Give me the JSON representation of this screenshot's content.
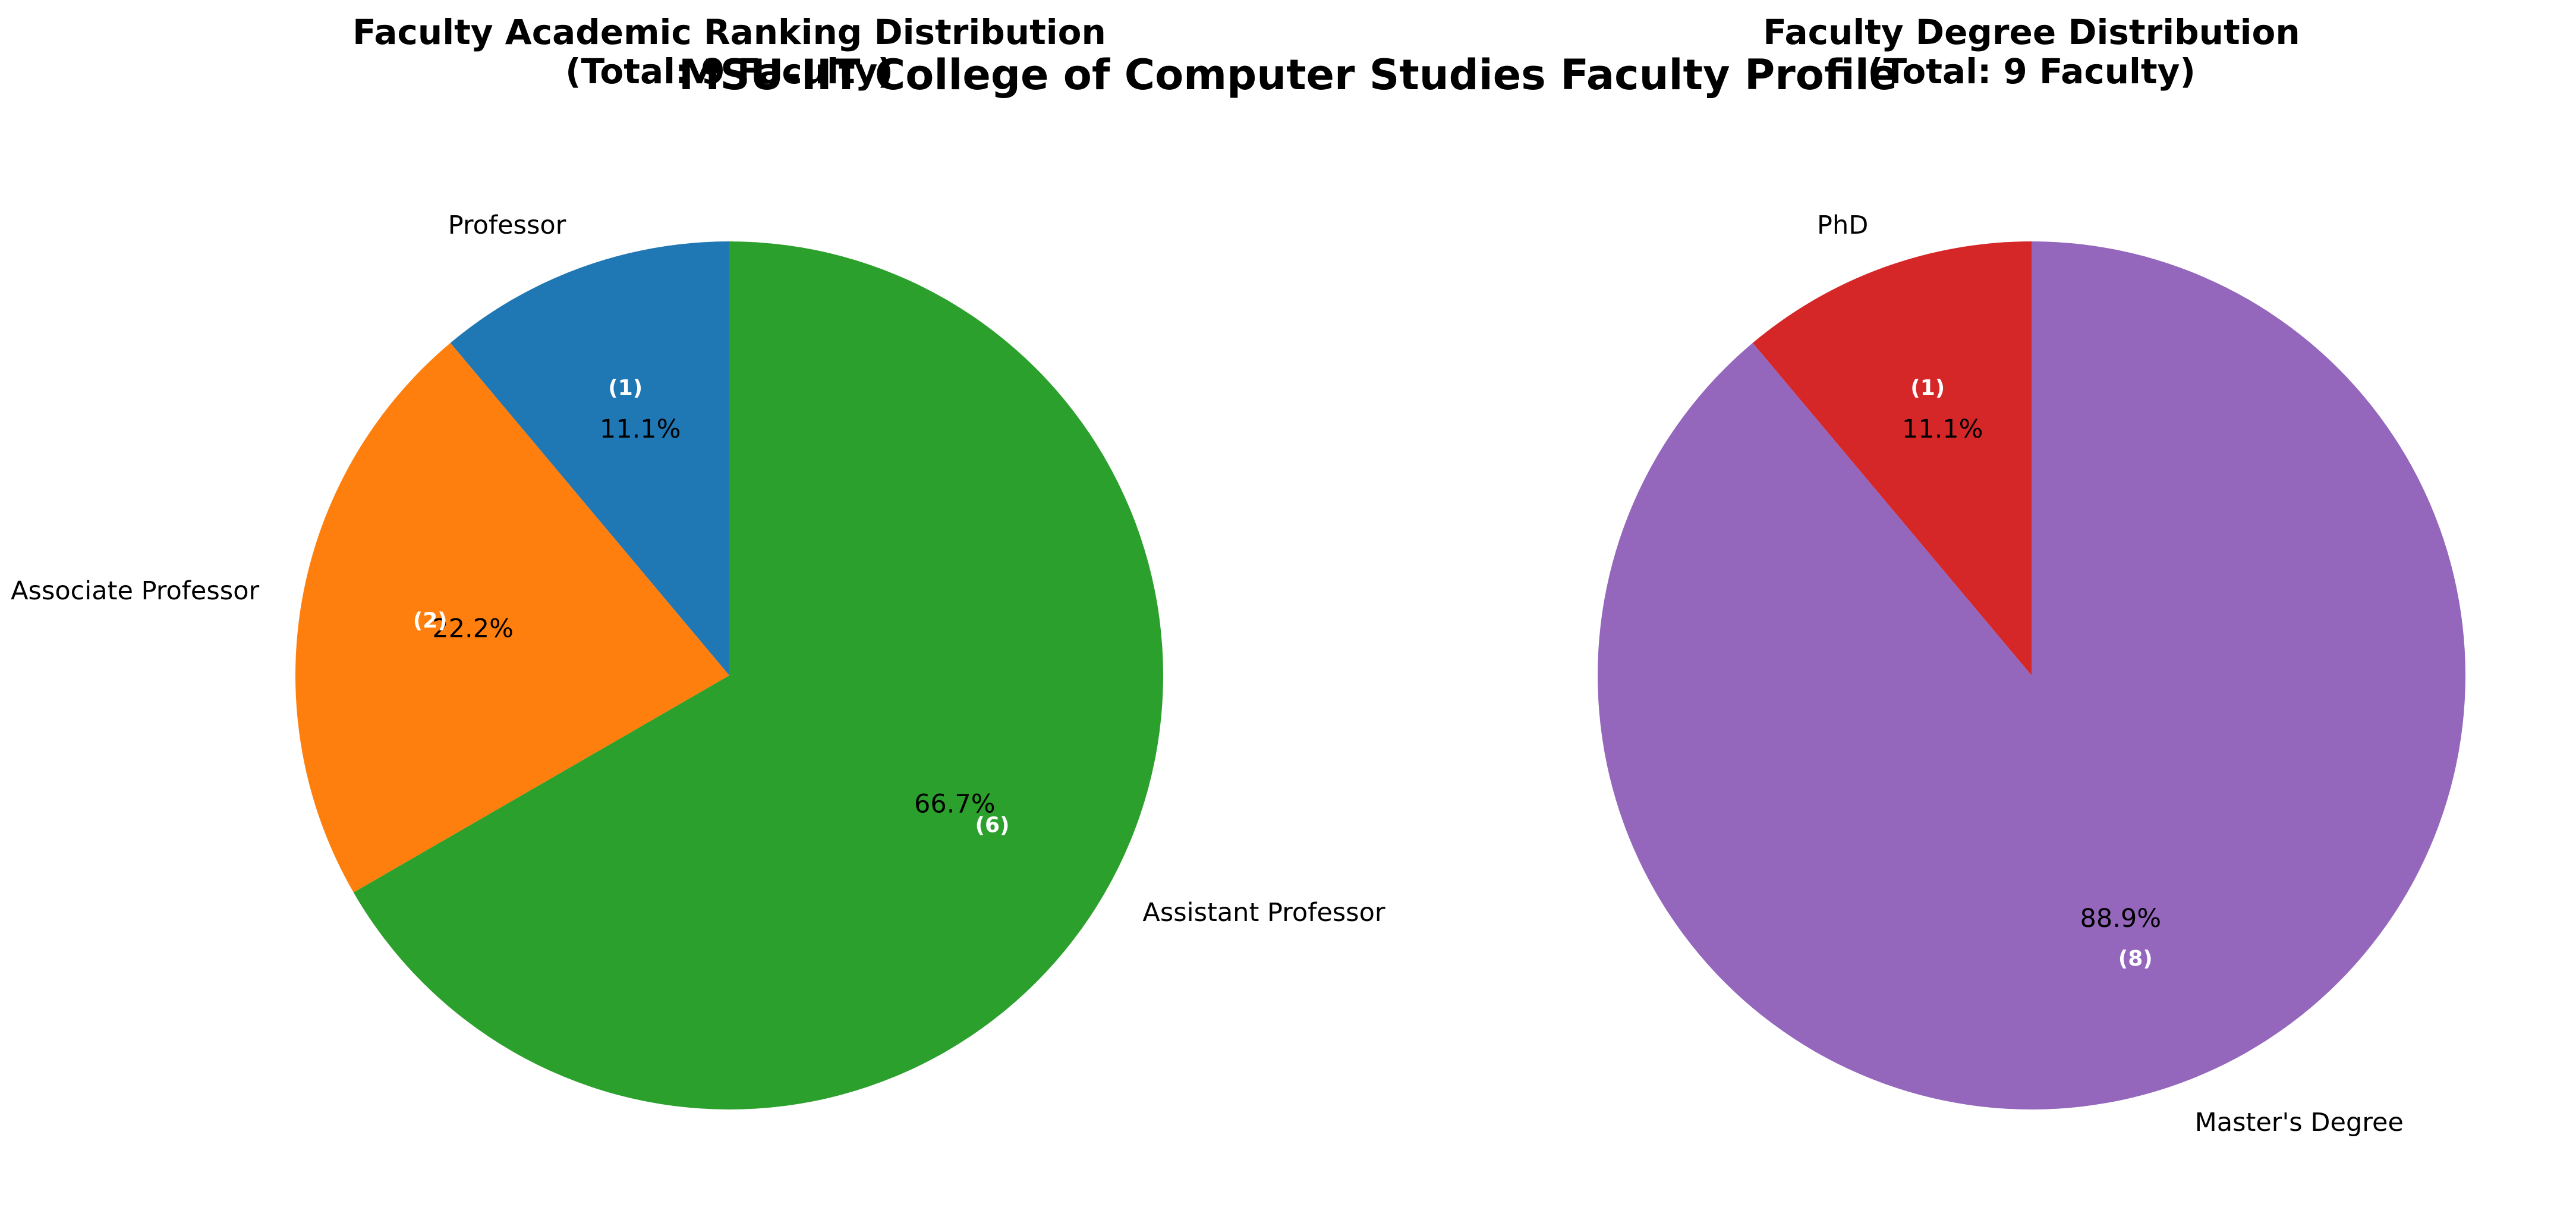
{
  "figure_title": "MSU-IIT College of Computer Studies Faculty Profile",
  "chart_data": [
    {
      "type": "pie",
      "title": "Faculty Academic Ranking Distribution\n(Total: 9 Faculty)",
      "categories": [
        "Professor",
        "Associate Professor",
        "Assistant Professor"
      ],
      "values": [
        1,
        2,
        6
      ],
      "percent_labels": [
        "11.1%",
        "22.2%",
        "66.7%"
      ],
      "count_labels": [
        "(1)",
        "(2)",
        "(6)"
      ],
      "colors": [
        "#1f77b4",
        "#ff7f0e",
        "#2ca02c"
      ],
      "start_angle_deg": 90,
      "direction": "counterclockwise"
    },
    {
      "type": "pie",
      "title": "Faculty Degree Distribution\n(Total: 9 Faculty)",
      "categories": [
        "PhD",
        "Master's Degree"
      ],
      "values": [
        1,
        8
      ],
      "percent_labels": [
        "11.1%",
        "88.9%"
      ],
      "count_labels": [
        "(1)",
        "(8)"
      ],
      "colors": [
        "#d62728",
        "#9467bd"
      ],
      "start_angle_deg": 90,
      "direction": "counterclockwise"
    }
  ]
}
